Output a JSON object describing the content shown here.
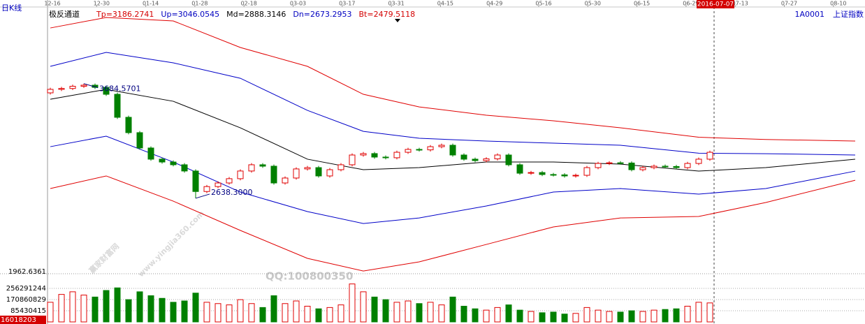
{
  "chart_data": {
    "type": "candlestick",
    "period": "日K线",
    "indicator": "极反通道",
    "header_labels": [
      {
        "label": "Tp=3186.2741",
        "color": "#d40000"
      },
      {
        "label": "Up=3046.0545",
        "color": "#0000c0"
      },
      {
        "label": "Md=2888.3146",
        "color": "#000000"
      },
      {
        "label": "Dn=2673.2953",
        "color": "#0000c0"
      },
      {
        "label": "Bt=2479.5118",
        "color": "#d40000"
      }
    ],
    "code": "1A0001",
    "index_name": "上证指数",
    "cursor_date": "2016-07-07",
    "x_labels": [
      "12-16",
      "12-30",
      "01-14",
      "01-28",
      "02-18",
      "03-03",
      "03-17",
      "03-31",
      "04-15",
      "04-29",
      "05-16",
      "05-30",
      "06-15",
      "06-29",
      "07-13",
      "07-27",
      "08-10"
    ],
    "ylim": [
      1962.6361,
      4358
    ],
    "open": [
      3600,
      3632,
      3640,
      3660,
      3670,
      3650,
      3587,
      3377,
      3237,
      3097,
      2995,
      2969,
      2944,
      2887,
      2700,
      2745,
      2778,
      2817,
      2887,
      2944,
      2931,
      2778,
      2823,
      2906,
      2918,
      2842,
      2899,
      2944,
      3033,
      3046,
      3014,
      3008,
      3058,
      3084,
      3080,
      3109,
      3122,
      3033,
      2995,
      2982,
      2998,
      3033,
      2944,
      2867,
      2873,
      2855,
      2852,
      2842,
      2848,
      2918,
      2956,
      2962,
      2960,
      2899,
      2918,
      2931,
      2928,
      2918,
      2956,
      2995
    ],
    "high": [
      3647,
      3655,
      3675,
      3684.5701,
      3685,
      3665,
      3602,
      3392,
      3252,
      3112,
      3010,
      2984,
      2959,
      2902,
      2760,
      2793,
      2832,
      2902,
      2959,
      2959,
      2946,
      2838,
      2921,
      2933,
      2933,
      2914,
      2959,
      3048,
      3061,
      3061,
      3029,
      3073,
      3099,
      3099,
      3124,
      3137,
      3137,
      3048,
      3010,
      3013,
      3048,
      3048,
      2959,
      2888,
      2888,
      2870,
      2867,
      2863,
      2933,
      2971,
      2977,
      2977,
      2975,
      2933,
      2946,
      2946,
      2943,
      2971,
      3010,
      3073
    ],
    "low": [
      3585,
      3617,
      3625,
      3645,
      3635,
      3572,
      3362,
      3222,
      3082,
      2980,
      2954,
      2929,
      2872,
      2638.3,
      2685,
      2730,
      2763,
      2802,
      2872,
      2916,
      2763,
      2763,
      2808,
      2891,
      2827,
      2827,
      2884,
      2929,
      3018,
      2999,
      2993,
      2993,
      3043,
      3065,
      3065,
      3094,
      3018,
      2980,
      2967,
      2967,
      2983,
      2929,
      2852,
      2852,
      2840,
      2837,
      2827,
      2827,
      2833,
      2903,
      2941,
      2945,
      2884,
      2884,
      2903,
      2913,
      2903,
      2903,
      2941,
      2980
    ],
    "close": [
      3632,
      3640,
      3660,
      3670,
      3650,
      3587,
      3377,
      3237,
      3097,
      2995,
      2969,
      2944,
      2887,
      2700,
      2745,
      2778,
      2817,
      2887,
      2944,
      2931,
      2778,
      2823,
      2906,
      2918,
      2842,
      2899,
      2944,
      3033,
      3046,
      3014,
      3008,
      3058,
      3084,
      3080,
      3109,
      3122,
      3033,
      2995,
      2982,
      2998,
      3033,
      2944,
      2867,
      2873,
      2855,
      2852,
      2842,
      2848,
      2918,
      2956,
      2962,
      2960,
      2899,
      2918,
      2931,
      2928,
      2918,
      2956,
      2995,
      3058
    ],
    "up_color": "#e00000",
    "down_color": "#008000",
    "annotations": [
      {
        "value": 3684.5701,
        "label": "3684.5701"
      },
      {
        "value": 2638.3,
        "label": "2638.3000"
      }
    ],
    "band_x": [
      0,
      5,
      11,
      17,
      23,
      28,
      33,
      39,
      45,
      51,
      58,
      64,
      72
    ],
    "bands": [
      {
        "name": "Tp",
        "color": "#e00000",
        "values": [
          4192,
          4288,
          4256,
          4014,
          3842,
          3587,
          3472,
          3396,
          3345,
          3281,
          3195,
          3175,
          3160
        ]
      },
      {
        "name": "Up",
        "color": "#0000c8",
        "values": [
          3842,
          3969,
          3874,
          3733,
          3440,
          3249,
          3186,
          3160,
          3141,
          3122,
          3050,
          3045,
          3033
        ]
      },
      {
        "name": "Md",
        "color": "#000000",
        "values": [
          3542,
          3632,
          3523,
          3281,
          2995,
          2899,
          2918,
          2969,
          2969,
          2950,
          2886,
          2918,
          2995
        ]
      },
      {
        "name": "Dn",
        "color": "#0000c8",
        "values": [
          3109,
          3205,
          2969,
          2695,
          2517,
          2408,
          2459,
          2568,
          2695,
          2727,
          2676,
          2727,
          2886
        ]
      },
      {
        "name": "Bt",
        "color": "#e00000",
        "values": [
          2727,
          2842,
          2612,
          2345,
          2090,
          1975,
          2058,
          2217,
          2377,
          2459,
          2472,
          2600,
          2803
        ]
      }
    ],
    "volume": {
      "values": [
        150000000,
        210000000,
        230000000,
        205000000,
        190000000,
        240000000,
        260000000,
        170000000,
        230000000,
        200000000,
        180000000,
        150000000,
        160000000,
        220000000,
        150000000,
        140000000,
        130000000,
        170000000,
        140000000,
        110000000,
        200000000,
        140000000,
        160000000,
        120000000,
        100000000,
        110000000,
        130000000,
        290000000,
        230000000,
        190000000,
        170000000,
        150000000,
        160000000,
        140000000,
        150000000,
        130000000,
        190000000,
        120000000,
        100000000,
        90000000,
        110000000,
        130000000,
        90000000,
        80000000,
        70000000,
        75000000,
        60000000,
        65000000,
        110000000,
        90000000,
        80000000,
        75000000,
        85000000,
        80000000,
        90000000,
        95000000,
        100000000,
        120000000,
        150000000,
        145000000
      ],
      "ylim": [
        0,
        352000000
      ],
      "yticks": [
        256291244,
        170860829,
        85430415
      ],
      "current_label": "16018203"
    },
    "watermarks": [
      "赢家财富网",
      "www.yingjia360.com",
      "QQ:100800350"
    ]
  }
}
